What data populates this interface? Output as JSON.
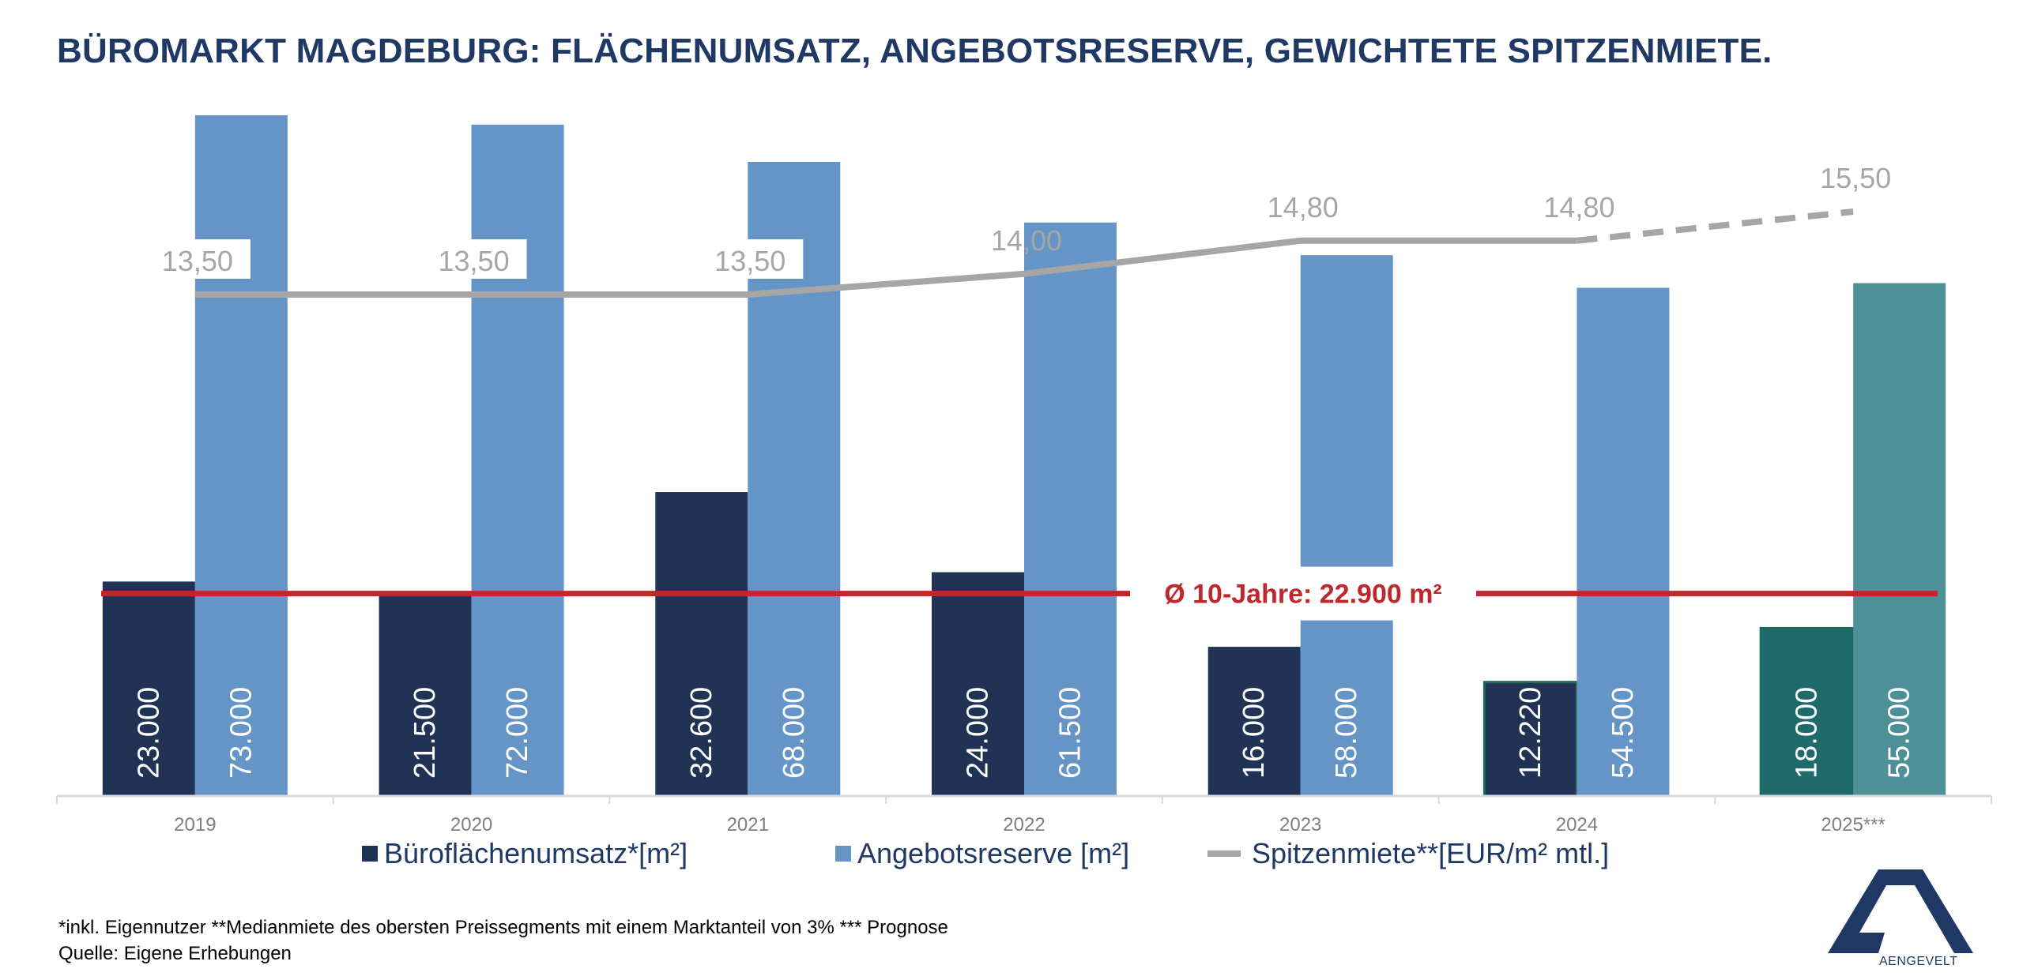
{
  "title": "BÜROMARKT MAGDEBURG: FLÄCHENUMSATZ, ANGEBOTSRESERVE, GEWICHTETE SPITZENMIETE.",
  "chart_data": {
    "type": "bar",
    "categories": [
      "2019",
      "2020",
      "2021",
      "2022",
      "2023",
      "2024",
      "2025***"
    ],
    "series": [
      {
        "name": "Büroflächenumsatz*[m²]",
        "values": [
          23000,
          21500,
          32600,
          24000,
          16000,
          12220,
          18000
        ],
        "labels": [
          "23.000",
          "21.500",
          "32.600",
          "24.000",
          "16.000",
          "12.220",
          "18.000"
        ],
        "color": "#203354",
        "forecast_color": "#1f6b6b"
      },
      {
        "name": "Angebotsreserve [m²]",
        "values": [
          73000,
          72000,
          68000,
          61500,
          58000,
          54500,
          55000
        ],
        "labels": [
          "73.000",
          "72.000",
          "68.000",
          "61.500",
          "58.000",
          "54.500",
          "55.000"
        ],
        "color": "#6595c7",
        "forecast_color": "#4e9098"
      },
      {
        "name": "Spitzenmiete**[EUR/m² mtl.]",
        "type": "line",
        "values": [
          13.5,
          13.5,
          13.5,
          14.0,
          14.8,
          14.8,
          15.5
        ],
        "labels": [
          "13,50",
          "13,50",
          "13,50",
          "14,00",
          "14,80",
          "14,80",
          "15,50"
        ],
        "color": "#a6a6a6",
        "forecast_dashed": true
      }
    ],
    "reference_line": {
      "value": 22900,
      "label": "Ø 10-Jahre: 22.900 m²",
      "color": "#c0272d"
    },
    "ylim_bars": [
      0,
      73000
    ],
    "legend": "bottom-center",
    "grid": false
  },
  "footnote": {
    "line1": "*inkl. Eigennutzer **Medianmiete des obersten Preissegments mit einem Marktanteil von 3% *** Prognose",
    "line2": "Quelle: Eigene Erhebungen"
  },
  "logo": {
    "name": "aengevelt-logo",
    "text": "AENGEVELT"
  }
}
